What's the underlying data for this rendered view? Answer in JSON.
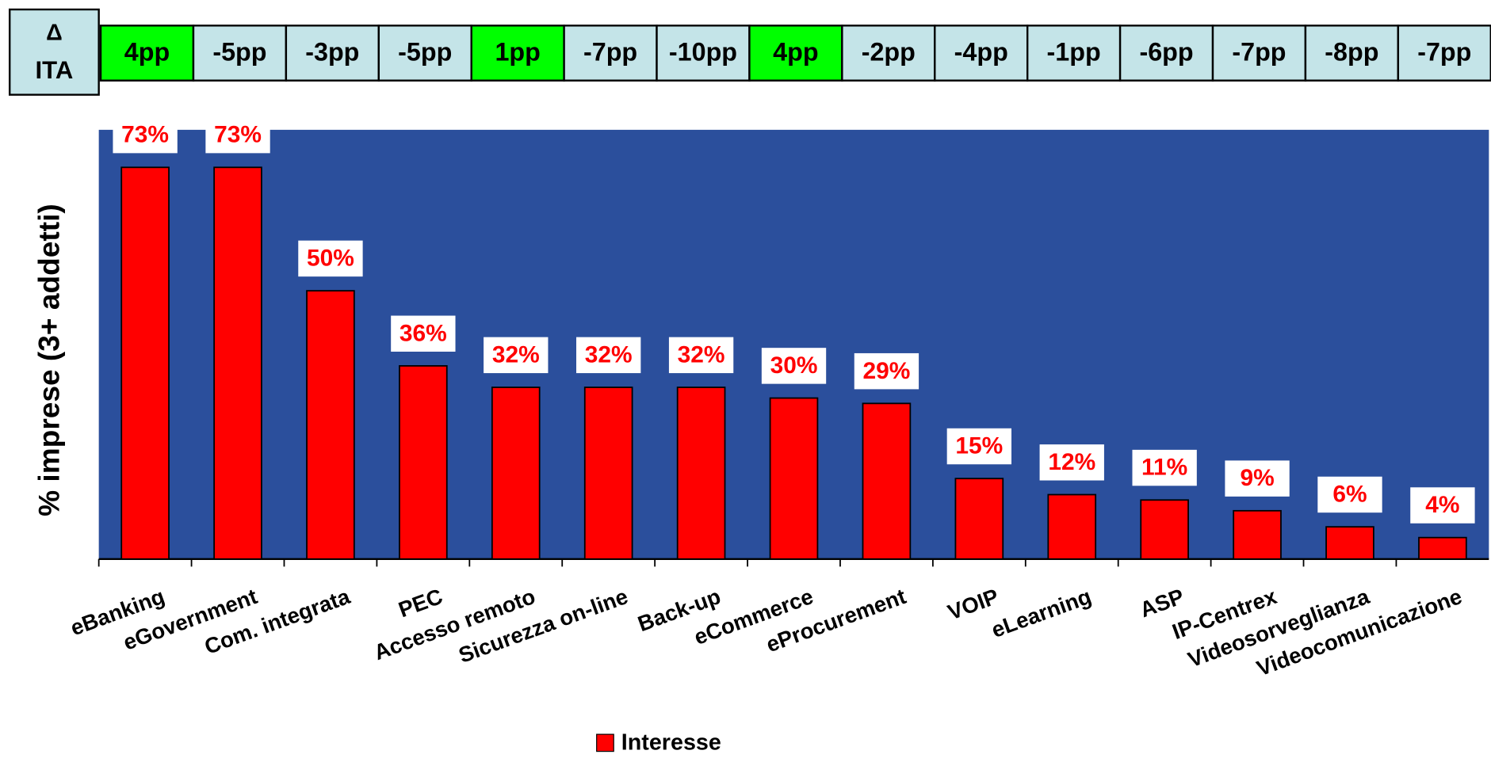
{
  "delta_row": {
    "header": [
      "Δ",
      "ITA"
    ],
    "cells": [
      "4pp",
      "-5pp",
      "-3pp",
      "-5pp",
      "1pp",
      "-7pp",
      "-10pp",
      "4pp",
      "-2pp",
      "-4pp",
      "-1pp",
      "-6pp",
      "-7pp",
      "-8pp",
      "-7pp"
    ],
    "cell_colors": [
      "#00ff00",
      "#c4e4e8",
      "#c4e4e8",
      "#c4e4e8",
      "#00ff00",
      "#c4e4e8",
      "#c4e4e8",
      "#00ff00",
      "#c4e4e8",
      "#c4e4e8",
      "#c4e4e8",
      "#c4e4e8",
      "#c4e4e8",
      "#c4e4e8",
      "#c4e4e8"
    ]
  },
  "chart_data": {
    "type": "bar",
    "y_label": "% imprese (3+ addetti)",
    "categories": [
      "eBanking",
      "eGovernment",
      "Com. integrata",
      "PEC",
      "Accesso remoto",
      "Sicurezza on-line",
      "Back-up",
      "eCommerce",
      "eProcurement",
      "VOIP",
      "eLearning",
      "ASP",
      "IP-Centrex",
      "Videosorveglianza",
      "Videocomunicazione"
    ],
    "series": [
      {
        "name": "Interesse",
        "color": "#ff0000",
        "values": [
          73,
          73,
          50,
          36,
          32,
          32,
          32,
          30,
          29,
          15,
          12,
          11,
          9,
          6,
          4
        ],
        "value_labels": [
          "73%",
          "73%",
          "50%",
          "36%",
          "32%",
          "32%",
          "32%",
          "30%",
          "29%",
          "15%",
          "12%",
          "11%",
          "9%",
          "6%",
          "4%"
        ]
      }
    ],
    "ylim": [
      0,
      80
    ],
    "background": "#2b4f9c",
    "legend": "bottom"
  }
}
